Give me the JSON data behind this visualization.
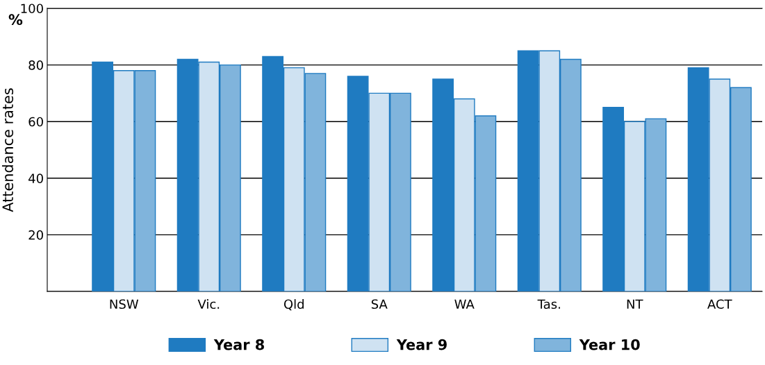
{
  "chart_data": {
    "type": "bar",
    "ylabel": "Attendance rates",
    "annotations": [
      "%"
    ],
    "categories": [
      "NSW",
      "Vic.",
      "Qld",
      "SA",
      "WA",
      "Tas.",
      "NT",
      "ACT"
    ],
    "series": [
      {
        "name": "Year 8",
        "color": "#1f7bc1",
        "values": [
          81,
          82,
          83,
          76,
          75,
          85,
          65,
          79
        ]
      },
      {
        "name": "Year 9",
        "color": "#cfe2f2",
        "values": [
          78,
          81,
          79,
          70,
          68,
          85,
          60,
          75
        ]
      },
      {
        "name": "Year 10",
        "color": "#80b4dc",
        "values": [
          78,
          80,
          77,
          70,
          62,
          82,
          61,
          72
        ]
      }
    ],
    "ylim": [
      0,
      100
    ],
    "yticks": [
      {
        "value": 0,
        "label": null
      },
      20,
      40,
      60,
      80,
      100
    ],
    "grid": "y",
    "legend": "bottom"
  }
}
